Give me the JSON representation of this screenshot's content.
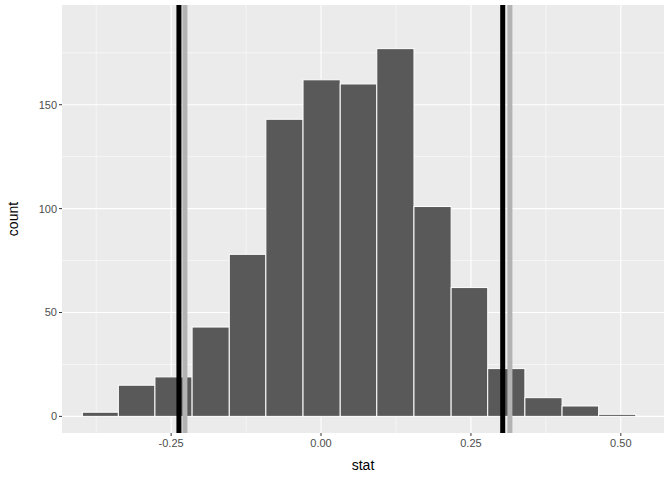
{
  "chart_data": {
    "type": "histogram",
    "x_label": "stat",
    "y_label": "count",
    "bins": [
      -0.398,
      -0.338,
      -0.277,
      -0.215,
      -0.153,
      -0.092,
      -0.03,
      0.032,
      0.093,
      0.155,
      0.217,
      0.278,
      0.34,
      0.402,
      0.463,
      0.525
    ],
    "values": [
      2,
      15,
      19,
      43,
      78,
      143,
      162,
      160,
      177,
      101,
      62,
      23,
      9,
      5,
      1
    ],
    "color": "#595959",
    "reference_lines": [
      {
        "value": -0.227,
        "color": "#b3b3b3"
      },
      {
        "value": 0.315,
        "color": "#b3b3b3"
      },
      {
        "value": -0.237,
        "color": "#000000"
      },
      {
        "value": 0.303,
        "color": "#000000"
      }
    ],
    "xlim": [
      -0.432,
      0.572
    ],
    "ylim": [
      -8,
      198
    ],
    "xticks": [
      -0.25,
      {
        "value": 0,
        "label": "0.00"
      },
      0.25,
      {
        "value": 0.5,
        "label": "0.50"
      }
    ],
    "yticks": [
      0,
      50,
      100,
      150
    ],
    "grid": true
  }
}
